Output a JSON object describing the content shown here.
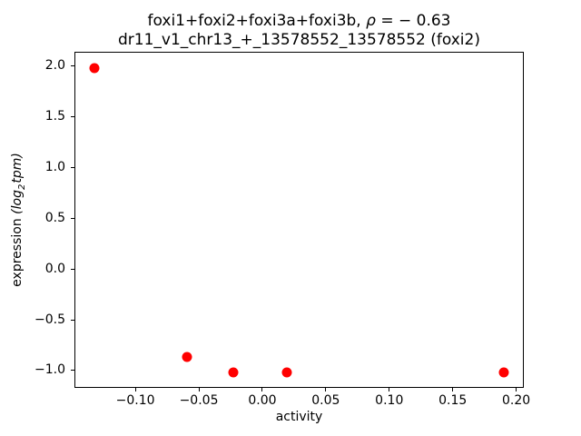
{
  "figure": {
    "title_line1_prefix": "foxi1+foxi2+foxi3a+foxi3b, ",
    "title_rho": "ρ",
    "title_line1_suffix": " = − 0.63",
    "title_line2": "dr11_v1_chr13_+_13578552_13578552 (foxi2)",
    "xlabel": "activity",
    "ylabel_prefix": "expression ",
    "ylabel_math_open": "(log",
    "ylabel_math_sub": "2",
    "ylabel_math_close": "tpm)"
  },
  "chart_data": {
    "type": "scatter",
    "title": "foxi1+foxi2+foxi3a+foxi3b, ρ = −0.63",
    "subtitle": "dr11_v1_chr13_+_13578552_13578552 (foxi2)",
    "xlabel": "activity",
    "ylabel": "expression (log₂tpm)",
    "marker_color": "#ff0000",
    "marker_size_px": 11,
    "grid": false,
    "legend_position": "none",
    "xlim": [
      -0.148,
      0.206
    ],
    "ylim": [
      -1.17,
      2.14
    ],
    "xticks": [
      -0.1,
      -0.05,
      0.0,
      0.05,
      0.1,
      0.15,
      0.2
    ],
    "xtick_labels": [
      "−0.10",
      "−0.05",
      "0.00",
      "0.05",
      "0.10",
      "0.15",
      "0.20"
    ],
    "yticks": [
      2.0,
      1.5,
      1.0,
      0.5,
      0.0,
      -0.5,
      -1.0
    ],
    "ytick_labels": [
      "2.0",
      "1.5",
      "1.0",
      "0.5",
      "0.0",
      "−0.5",
      "−1.0"
    ],
    "points": [
      {
        "x": -0.132,
        "y": 1.98
      },
      {
        "x": -0.059,
        "y": -0.87
      },
      {
        "x": -0.023,
        "y": -1.02
      },
      {
        "x": 0.019,
        "y": -1.02
      },
      {
        "x": 0.19,
        "y": -1.02
      }
    ]
  }
}
